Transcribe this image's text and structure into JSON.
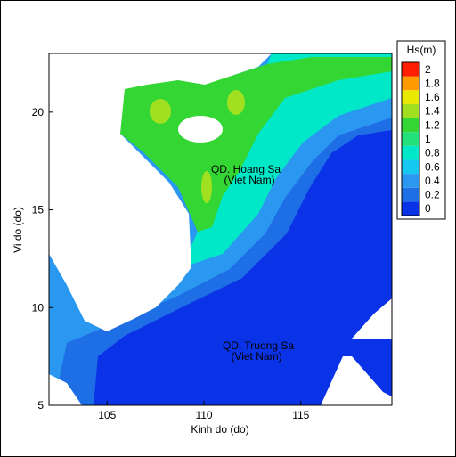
{
  "chart_data": {
    "type": "contour",
    "xlabel": "Kinh do (do)",
    "ylabel": "Vi do (do)",
    "xlim": [
      102,
      119.7
    ],
    "ylim": [
      5,
      23
    ],
    "xticks": [
      105,
      110,
      115
    ],
    "yticks": [
      5,
      10,
      15,
      20
    ],
    "annotations": [
      "QD. Hoang Sa",
      "(Viet Nam)",
      "QD. Truong Sa",
      "(Viet Nam)"
    ],
    "colorbar": {
      "title": "Hs(m)",
      "levels": [
        0,
        0.2,
        0.4,
        0.6,
        0.8,
        1,
        1.2,
        1.4,
        1.6,
        1.8,
        2
      ],
      "colors": [
        "#0a32e6",
        "#1e6ee6",
        "#2a98f0",
        "#16c8f0",
        "#00e8c8",
        "#22e07a",
        "#33d633",
        "#a0e020",
        "#e8e800",
        "#ff9a00",
        "#ff1e00"
      ]
    }
  }
}
